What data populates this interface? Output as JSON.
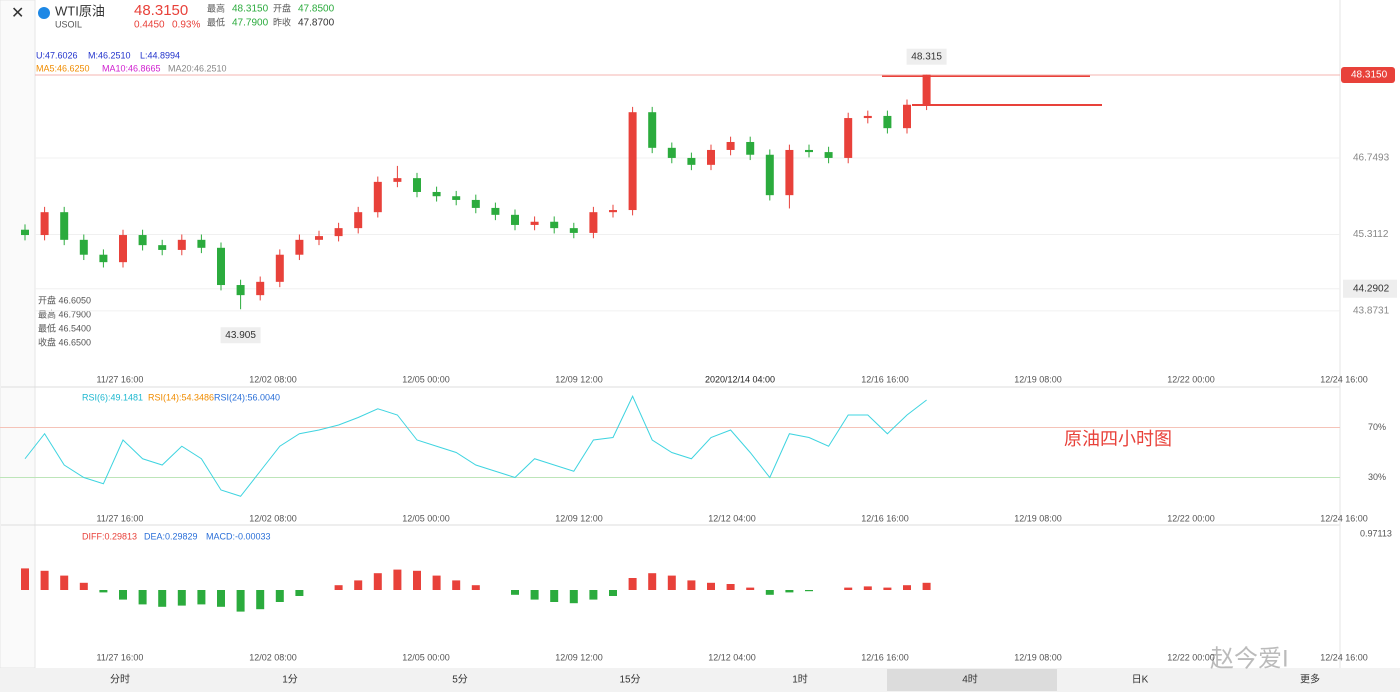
{
  "header": {
    "symbol": "WTI原油",
    "code": "USOIL",
    "price": "48.3150",
    "change": "0.4450",
    "change_pct": "0.93%",
    "stats": [
      [
        "最高",
        "48.3150"
      ],
      [
        "开盘",
        "47.8500"
      ],
      [
        "最低",
        "47.7900"
      ],
      [
        "昨收",
        "47.8700"
      ]
    ]
  },
  "boll": [
    "U:47.6026",
    "M:46.2510",
    "L:44.8994"
  ],
  "ma": [
    "MA5:46.6250",
    "MA10:46.8665",
    "MA20:46.2510"
  ],
  "ohlc_info": [
    "开盘 46.6050",
    "最高 46.7900",
    "最低 46.5400",
    "收盘 46.6500"
  ],
  "price_labels": {
    "current": "48.3150",
    "levels": [
      "46.7493",
      "45.3112",
      "44.2902",
      "43.8731"
    ]
  },
  "crosshair_time": "2020/12/14 04:00",
  "annotation": "原油四小时图",
  "rsi_labels": [
    "RSI(6):49.1481",
    "RSI(14):54.3486",
    "RSI(24):56.0040"
  ],
  "macd_labels": [
    "DIFF:0.29813",
    "DEA:0.29829",
    "MACD:-0.00033"
  ],
  "macd_top_label": "0.97113",
  "times": [
    "11/27 16:00",
    "12/02 08:00",
    "12/05 00:00",
    "12/09 12:00",
    "12/12 04:00",
    "12/16 16:00",
    "12/19 08:00",
    "12/22 00:00",
    "12/24 16:00"
  ],
  "tabs": [
    "分时",
    "1分",
    "5分",
    "15分",
    "1时",
    "4时",
    "日K",
    "更多"
  ],
  "watermark": "赵今爱I",
  "chart_data": {
    "type": "candlestick",
    "ylim": [
      42.48,
      49.72
    ],
    "open": [
      45.4,
      45.3,
      45.73,
      45.21,
      44.93,
      44.79,
      45.3,
      45.11,
      45.02,
      45.21,
      45.06,
      44.36,
      44.17,
      44.42,
      44.93,
      45.21,
      45.28,
      45.43,
      45.73,
      46.3,
      46.37,
      46.11,
      46.03,
      45.96,
      45.81,
      45.68,
      45.49,
      45.55,
      45.43,
      45.34,
      45.73,
      45.77,
      47.61,
      46.94,
      46.75,
      46.62,
      46.9,
      47.05,
      46.81,
      46.05,
      46.9,
      46.86,
      46.75,
      47.5,
      47.54,
      47.31,
      47.75
    ],
    "high": [
      45.5,
      45.83,
      45.83,
      45.31,
      45.03,
      45.4,
      45.4,
      45.21,
      45.31,
      45.31,
      45.16,
      44.46,
      44.52,
      45.03,
      45.31,
      45.38,
      45.53,
      45.83,
      46.4,
      46.6,
      46.47,
      46.21,
      46.13,
      46.06,
      45.91,
      45.78,
      45.65,
      45.65,
      45.53,
      45.83,
      45.87,
      47.71,
      47.71,
      47.04,
      46.85,
      47.0,
      47.15,
      47.15,
      46.91,
      47.0,
      47.0,
      46.96,
      47.6,
      47.64,
      47.64,
      47.85,
      48.315
    ],
    "low": [
      45.2,
      45.2,
      45.11,
      44.83,
      44.69,
      44.69,
      45.01,
      44.92,
      44.92,
      44.96,
      44.26,
      43.905,
      44.07,
      44.32,
      44.83,
      45.11,
      45.18,
      45.33,
      45.63,
      46.2,
      46.01,
      45.93,
      45.86,
      45.71,
      45.58,
      45.39,
      45.39,
      45.33,
      45.24,
      45.24,
      45.63,
      45.67,
      46.84,
      46.65,
      46.52,
      46.52,
      46.8,
      46.71,
      45.95,
      45.8,
      46.76,
      46.65,
      46.65,
      47.4,
      47.21,
      47.21,
      47.65
    ],
    "close": [
      45.3,
      45.73,
      45.21,
      44.93,
      44.79,
      45.3,
      45.11,
      45.02,
      45.21,
      45.06,
      44.36,
      44.17,
      44.42,
      44.93,
      45.21,
      45.28,
      45.43,
      45.73,
      46.3,
      46.37,
      46.11,
      46.03,
      45.96,
      45.81,
      45.68,
      45.49,
      45.55,
      45.43,
      45.34,
      45.73,
      45.77,
      47.61,
      46.94,
      46.75,
      46.62,
      46.9,
      47.05,
      46.81,
      46.05,
      46.9,
      46.86,
      46.75,
      47.5,
      47.54,
      47.31,
      47.75,
      48.315
    ],
    "up_color": "#e8413a",
    "down_color": "#2bab3d",
    "rsi": {
      "ylim": [
        0,
        100
      ],
      "yticks": [
        {
          "value": 70,
          "label": "70%"
        },
        {
          "value": 30,
          "label": "30%"
        }
      ],
      "color": "#3fd4e0",
      "values": [
        45,
        65,
        40,
        30,
        25,
        60,
        45,
        40,
        55,
        45,
        20,
        15,
        35,
        55,
        65,
        68,
        72,
        78,
        85,
        80,
        60,
        55,
        50,
        40,
        35,
        30,
        45,
        40,
        35,
        60,
        62,
        95,
        60,
        50,
        45,
        62,
        68,
        50,
        30,
        65,
        62,
        55,
        80,
        80,
        65,
        80,
        92
      ]
    },
    "macd": {
      "ylim": [
        -0.5,
        0.5
      ],
      "values": [
        0.18,
        0.16,
        0.12,
        0.06,
        -0.02,
        -0.08,
        -0.12,
        -0.14,
        -0.13,
        -0.12,
        -0.14,
        -0.18,
        -0.16,
        -0.1,
        -0.05,
        0.0,
        0.04,
        0.08,
        0.14,
        0.17,
        0.16,
        0.12,
        0.08,
        0.04,
        0.0,
        -0.04,
        -0.08,
        -0.1,
        -0.11,
        -0.08,
        -0.05,
        0.1,
        0.14,
        0.12,
        0.08,
        0.06,
        0.05,
        0.02,
        -0.04,
        -0.02,
        -0.01,
        0.0,
        0.02,
        0.03,
        0.02,
        0.04,
        0.06
      ]
    }
  }
}
